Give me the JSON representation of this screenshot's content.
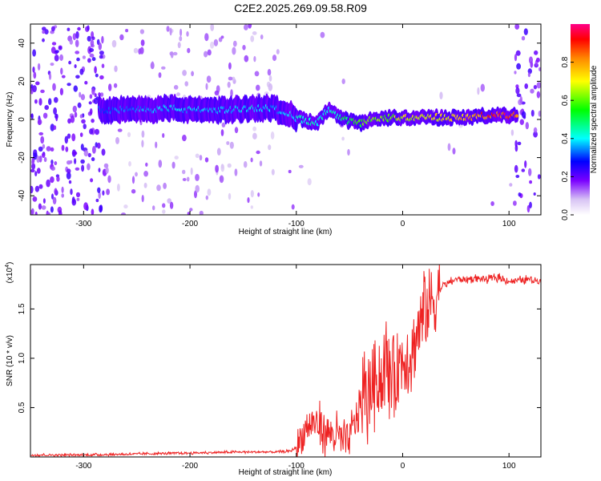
{
  "title": "C2E2.2025.269.09.58.R09",
  "chart_data": [
    {
      "type": "heatmap",
      "xlabel": "Height of straight line (km)",
      "ylabel": "Frequency (Hz)",
      "xlim": [
        -350,
        130
      ],
      "ylim": [
        -50,
        50
      ],
      "xticks": [
        -300,
        -200,
        -100,
        0,
        100
      ],
      "yticks": [
        -40,
        -20,
        0,
        20,
        40
      ],
      "colorbar": {
        "label": "Normalized spectral amplitude",
        "range": [
          0,
          1
        ],
        "ticks": [
          0.0,
          0.2,
          0.4,
          0.6,
          0.8
        ],
        "tick_labels": [
          "0.0",
          "0.2",
          "0.4",
          "0.6",
          "0.8"
        ]
      },
      "ridge": {
        "x": [
          -285,
          -260,
          -240,
          -220,
          -200,
          -180,
          -160,
          -140,
          -125,
          -110,
          -100,
          -90,
          -80,
          -70,
          -60,
          -50,
          -40,
          -30,
          -20,
          -10,
          0,
          20,
          40,
          60,
          80,
          100,
          108
        ],
        "freq": [
          5,
          5,
          5,
          6,
          5,
          5,
          5,
          6,
          6,
          4,
          1,
          -1,
          -2,
          5,
          1,
          -1,
          -2,
          0,
          0,
          1,
          1,
          1,
          1,
          1,
          2,
          2,
          2
        ],
        "amplitude": [
          0.35,
          0.35,
          0.38,
          0.4,
          0.4,
          0.38,
          0.4,
          0.42,
          0.4,
          0.38,
          0.42,
          0.45,
          0.45,
          0.45,
          0.5,
          0.55,
          0.6,
          0.62,
          0.65,
          0.68,
          0.7,
          0.72,
          0.75,
          0.78,
          0.9,
          0.95,
          0.8
        ]
      }
    },
    {
      "type": "line",
      "xlabel": "Height of straight line (km)",
      "ylabel": "SNR (10 * v/v)",
      "y_multiplier": "(x10",
      "y_multiplier_exp": "4",
      "y_multiplier_close": ")",
      "xlim": [
        -350,
        130
      ],
      "ylim": [
        0,
        1.95
      ],
      "xticks": [
        -300,
        -200,
        -100,
        0,
        100
      ],
      "yticks": [
        0.5,
        1.0,
        1.5
      ],
      "ytick_labels": [
        "0.5",
        "1.0",
        "1.5"
      ],
      "series": [
        {
          "color": "#ee2222",
          "x": [
            -350,
            -300,
            -250,
            -200,
            -150,
            -120,
            -105,
            -100,
            -95,
            -90,
            -85,
            -80,
            -75,
            -70,
            -65,
            -60,
            -55,
            -50,
            -45,
            -40,
            -35,
            -30,
            -25,
            -20,
            -15,
            -10,
            -5,
            0,
            5,
            10,
            15,
            20,
            25,
            30,
            35,
            40,
            50,
            60,
            70,
            80,
            90,
            100,
            110,
            120,
            130
          ],
          "y": [
            0.02,
            0.02,
            0.03,
            0.04,
            0.05,
            0.05,
            0.06,
            0.1,
            0.2,
            0.3,
            0.35,
            0.32,
            0.28,
            0.25,
            0.22,
            0.2,
            0.15,
            0.18,
            0.35,
            0.55,
            0.6,
            0.7,
            0.85,
            0.8,
            0.9,
            0.85,
            0.9,
            1.0,
            1.05,
            1.1,
            1.3,
            1.45,
            1.55,
            1.6,
            1.7,
            1.75,
            1.8,
            1.8,
            1.81,
            1.8,
            1.82,
            1.78,
            1.79,
            1.8,
            1.78
          ]
        }
      ]
    }
  ]
}
